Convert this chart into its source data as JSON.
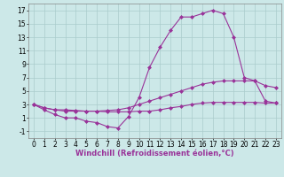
{
  "xlabel": "Windchill (Refroidissement éolien,°C)",
  "background_color": "#cce8e8",
  "grid_color": "#aacccc",
  "line_color": "#993399",
  "xlim": [
    -0.5,
    23.5
  ],
  "ylim": [
    -2,
    18
  ],
  "xticks": [
    0,
    1,
    2,
    3,
    4,
    5,
    6,
    7,
    8,
    9,
    10,
    11,
    12,
    13,
    14,
    15,
    16,
    17,
    18,
    19,
    20,
    21,
    22,
    23
  ],
  "yticks": [
    -1,
    1,
    3,
    5,
    7,
    9,
    11,
    13,
    15,
    17
  ],
  "line1_x": [
    0,
    1,
    2,
    3,
    4,
    5,
    6,
    7,
    8,
    9,
    10,
    11,
    12,
    13,
    14,
    15,
    16,
    17,
    18,
    19,
    20,
    21,
    22,
    23
  ],
  "line1_y": [
    3.0,
    2.2,
    1.5,
    1.0,
    1.0,
    0.5,
    0.3,
    -0.3,
    -0.5,
    1.2,
    4.0,
    8.5,
    11.5,
    14.0,
    16.0,
    16.0,
    16.5,
    17.0,
    16.5,
    13.0,
    7.0,
    6.5,
    3.5,
    3.2
  ],
  "line2_x": [
    0,
    1,
    2,
    3,
    4,
    5,
    6,
    7,
    8,
    9,
    10,
    11,
    12,
    13,
    14,
    15,
    16,
    17,
    18,
    19,
    20,
    21,
    22,
    23
  ],
  "line2_y": [
    3.0,
    2.5,
    2.2,
    2.0,
    2.0,
    2.0,
    2.0,
    2.1,
    2.2,
    2.5,
    3.0,
    3.5,
    4.0,
    4.5,
    5.0,
    5.5,
    6.0,
    6.3,
    6.5,
    6.5,
    6.5,
    6.5,
    5.8,
    5.5
  ],
  "line3_x": [
    0,
    1,
    2,
    3,
    4,
    5,
    6,
    7,
    8,
    9,
    10,
    11,
    12,
    13,
    14,
    15,
    16,
    17,
    18,
    19,
    20,
    21,
    22,
    23
  ],
  "line3_y": [
    3.0,
    2.5,
    2.2,
    2.2,
    2.1,
    2.0,
    2.0,
    1.9,
    1.9,
    1.9,
    2.0,
    2.0,
    2.2,
    2.5,
    2.7,
    3.0,
    3.2,
    3.3,
    3.3,
    3.3,
    3.3,
    3.3,
    3.2,
    3.2
  ],
  "marker": "D",
  "markersize": 2,
  "linewidth": 0.8,
  "xlabel_fontsize": 6,
  "tick_fontsize": 5.5
}
